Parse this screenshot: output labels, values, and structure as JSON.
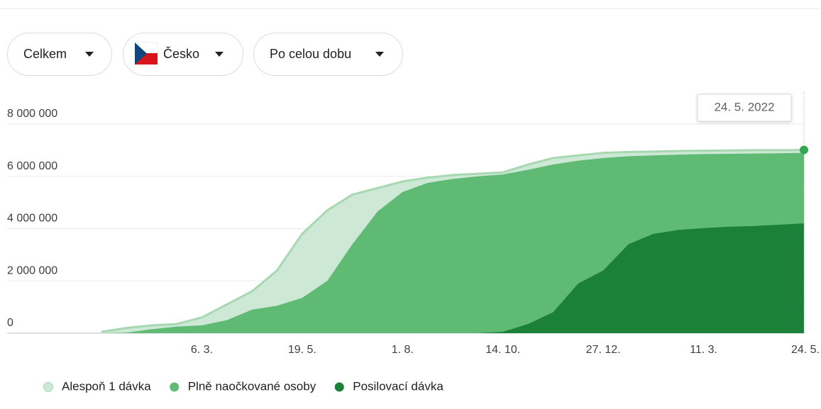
{
  "filters": [
    "Celkem",
    "Česko",
    "Po celou dobu"
  ],
  "chart_data": {
    "type": "area",
    "tooltip": "24. 5. 2022",
    "categories": [
      null,
      null,
      null,
      null,
      "6. 3.",
      null,
      null,
      null,
      "19. 5.",
      null,
      null,
      null,
      "1. 8.",
      null,
      null,
      null,
      "14. 10.",
      null,
      null,
      null,
      "27. 12.",
      null,
      null,
      null,
      "11. 3.",
      null,
      null,
      null,
      "24. 5."
    ],
    "series": [
      {
        "name": "Alespoň 1 dávka",
        "color": "#cde8d5",
        "line_color": "#a8d8b2",
        "values": [
          50000,
          200000,
          300000,
          350000,
          600000,
          1100000,
          1600000,
          2400000,
          3800000,
          4700000,
          5300000,
          5550000,
          5800000,
          5950000,
          6050000,
          6100000,
          6150000,
          6450000,
          6700000,
          6800000,
          6900000,
          6930000,
          6950000,
          6970000,
          6980000,
          6990000,
          7000000,
          7000000,
          7010000
        ]
      },
      {
        "name": "Plně naočkované osoby",
        "color": "#5fba73",
        "values": [
          0,
          20000,
          150000,
          250000,
          300000,
          500000,
          900000,
          1050000,
          1350000,
          2000000,
          3400000,
          4650000,
          5400000,
          5750000,
          5900000,
          6000000,
          6070000,
          6250000,
          6450000,
          6600000,
          6700000,
          6770000,
          6800000,
          6830000,
          6850000,
          6860000,
          6870000,
          6880000,
          6900000
        ]
      },
      {
        "name": "Posilovací dávka",
        "color": "#1b8038",
        "values": [
          0,
          0,
          0,
          0,
          0,
          0,
          0,
          0,
          0,
          0,
          0,
          0,
          0,
          0,
          0,
          0,
          50000,
          350000,
          800000,
          1900000,
          2400000,
          3400000,
          3800000,
          3950000,
          4020000,
          4070000,
          4100000,
          4150000,
          4200000
        ]
      }
    ],
    "ylim": [
      0,
      8000000
    ],
    "yticks": [
      0,
      {
        "value": 2000000,
        "label": "2 000 000"
      },
      {
        "value": 4000000,
        "label": "4 000 000"
      },
      {
        "value": 6000000,
        "label": "6 000 000"
      },
      {
        "value": 8000000,
        "label": "8 000 000"
      }
    ],
    "grid": true,
    "legend": "bottom"
  }
}
